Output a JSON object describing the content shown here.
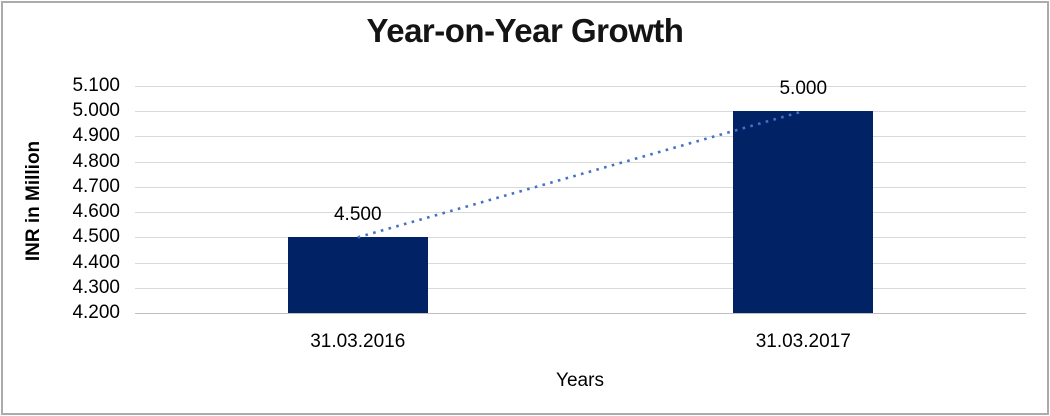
{
  "chart_data": {
    "type": "bar",
    "title": "Year-on-Year Growth",
    "xlabel": "Years",
    "ylabel": "INR in Million",
    "categories": [
      "31.03.2016",
      "31.03.2017"
    ],
    "values": [
      4500,
      5000
    ],
    "value_labels": [
      "4.500",
      "5.000"
    ],
    "ylim": [
      4200,
      5100
    ],
    "ytick_step": 100,
    "ytick_labels": [
      "4.200",
      "4.300",
      "4.400",
      "4.500",
      "4.600",
      "4.700",
      "4.800",
      "4.900",
      "5.000",
      "5.100"
    ],
    "grid": true,
    "legend": "none",
    "trendline": {
      "type": "linear",
      "style": "dotted"
    },
    "colors": {
      "bar": "#022266",
      "trendline": "#4472c4",
      "gridline": "#d9d9d9",
      "axis_line": "#bfbfbf",
      "frame_border": "#ababab",
      "text": "#000000"
    }
  }
}
